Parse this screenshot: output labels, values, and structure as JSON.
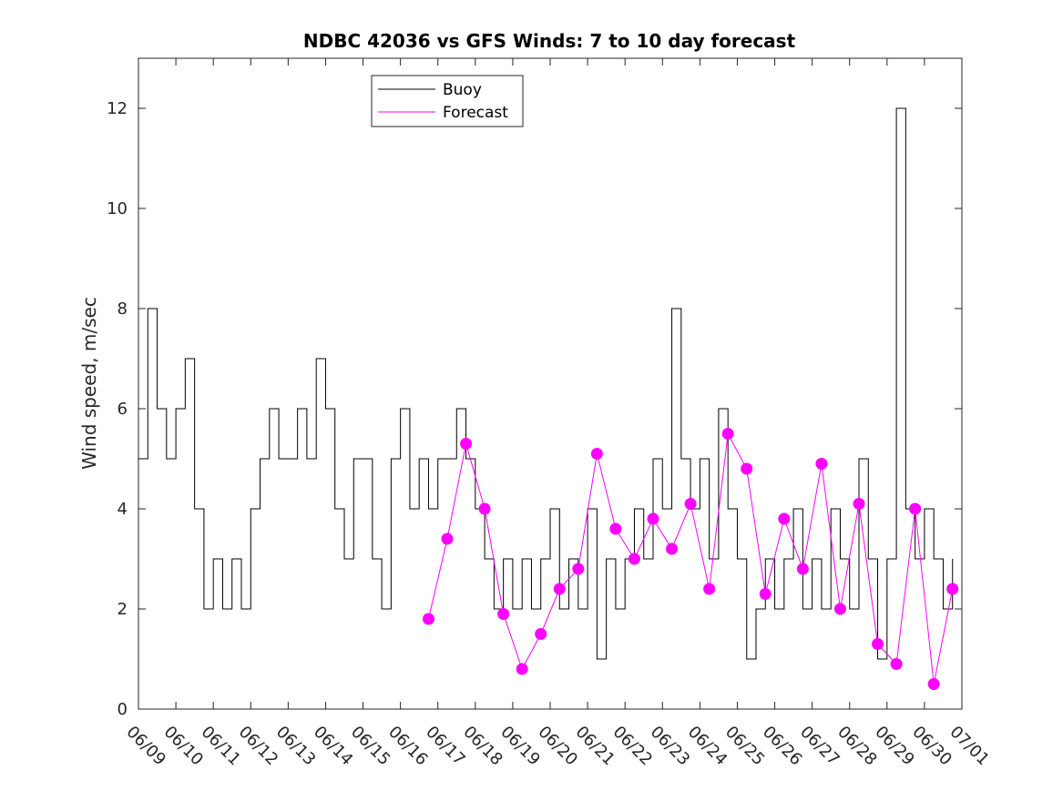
{
  "chart_data": {
    "type": "line",
    "title": "NDBC 42036 vs GFS Winds: 7 to 10 day forecast",
    "xlabel": "",
    "ylabel": "Wind speed, m/sec",
    "xlim": [
      "06/09",
      "07/01"
    ],
    "ylim": [
      0,
      13
    ],
    "x_tick_labels": [
      "06/09",
      "06/10",
      "06/11",
      "06/12",
      "06/13",
      "06/14",
      "06/15",
      "06/16",
      "06/17",
      "06/18",
      "06/19",
      "06/20",
      "06/21",
      "06/22",
      "06/23",
      "06/24",
      "06/25",
      "06/26",
      "06/27",
      "06/28",
      "06/29",
      "06/30",
      "07/01"
    ],
    "y_ticks": [
      0,
      2,
      4,
      6,
      8,
      10,
      12
    ],
    "grid": false,
    "legend": {
      "position": "top-left",
      "entries": [
        "Buoy",
        "Forecast"
      ]
    },
    "colors": {
      "buoy": "#000000",
      "forecast": "#ff00ff"
    },
    "series": [
      {
        "name": "Buoy",
        "x": [
          "06/09",
          "06/09 06Z",
          "06/09 12Z",
          "06/09 18Z",
          "06/10",
          "06/10 06Z",
          "06/10 12Z",
          "06/10 18Z",
          "06/11",
          "06/11 06Z",
          "06/11 12Z",
          "06/11 18Z",
          "06/12",
          "06/12 06Z",
          "06/12 12Z",
          "06/12 18Z",
          "06/13",
          "06/13 06Z",
          "06/13 12Z",
          "06/13 18Z",
          "06/14",
          "06/14 06Z",
          "06/14 12Z",
          "06/14 18Z",
          "06/15",
          "06/15 06Z",
          "06/15 12Z",
          "06/15 18Z",
          "06/16",
          "06/16 06Z",
          "06/16 12Z",
          "06/16 18Z",
          "06/17",
          "06/17 06Z",
          "06/17 12Z",
          "06/17 18Z",
          "06/18",
          "06/18 06Z",
          "06/18 12Z",
          "06/18 18Z",
          "06/19",
          "06/19 06Z",
          "06/19 12Z",
          "06/19 18Z",
          "06/20",
          "06/20 06Z",
          "06/20 12Z",
          "06/20 18Z",
          "06/21",
          "06/21 06Z",
          "06/21 12Z",
          "06/21 18Z",
          "06/22",
          "06/22 06Z",
          "06/22 12Z",
          "06/22 18Z",
          "06/23",
          "06/23 06Z",
          "06/23 12Z",
          "06/23 18Z",
          "06/24",
          "06/24 06Z",
          "06/24 12Z",
          "06/24 18Z",
          "06/25",
          "06/25 06Z",
          "06/25 12Z",
          "06/25 18Z",
          "06/26",
          "06/26 06Z",
          "06/26 12Z",
          "06/26 18Z",
          "06/27",
          "06/27 06Z",
          "06/27 12Z",
          "06/27 18Z",
          "06/28",
          "06/28 06Z",
          "06/28 12Z",
          "06/28 18Z",
          "06/29",
          "06/29 06Z",
          "06/29 12Z",
          "06/29 18Z",
          "06/30",
          "06/30 06Z",
          "06/30 12Z",
          "06/30 18Z"
        ],
        "values": [
          5,
          8,
          6,
          5,
          6,
          7,
          4,
          2,
          3,
          2,
          3,
          2,
          4,
          5,
          6,
          5,
          5,
          6,
          5,
          7,
          6,
          4,
          3,
          5,
          5,
          3,
          2,
          5,
          6,
          4,
          5,
          4,
          5,
          5,
          6,
          5,
          4,
          3,
          2,
          3,
          2,
          3,
          2,
          3,
          4,
          2,
          3,
          2,
          4,
          1,
          3,
          2,
          3,
          4,
          3,
          5,
          4,
          8,
          5,
          4,
          5,
          3,
          6,
          4,
          3,
          1,
          2,
          3,
          2,
          3,
          4,
          2,
          3,
          2,
          4,
          3,
          2,
          5,
          3,
          1,
          3,
          12,
          4,
          3,
          4,
          3,
          2,
          3
        ]
      },
      {
        "name": "Forecast",
        "x": [
          "06/16 18Z",
          "06/17 06Z",
          "06/17 18Z",
          "06/18 06Z",
          "06/18 18Z",
          "06/19 06Z",
          "06/19 18Z",
          "06/20 06Z",
          "06/20 18Z",
          "06/21 06Z",
          "06/21 18Z",
          "06/22 06Z",
          "06/22 18Z",
          "06/23 06Z",
          "06/23 18Z",
          "06/24 06Z",
          "06/24 18Z",
          "06/25 06Z",
          "06/25 18Z",
          "06/26 06Z",
          "06/26 18Z",
          "06/27 06Z",
          "06/27 18Z",
          "06/28 06Z",
          "06/28 18Z",
          "06/29 06Z",
          "06/29 18Z",
          "06/30 06Z",
          "06/30 18Z"
        ],
        "values": [
          1.8,
          3.4,
          5.3,
          4.0,
          1.9,
          0.8,
          1.5,
          2.4,
          2.8,
          5.1,
          3.6,
          3.0,
          3.8,
          3.2,
          4.1,
          2.4,
          5.5,
          4.8,
          2.3,
          3.8,
          2.8,
          4.9,
          2.0,
          4.1,
          1.3,
          0.9,
          4.0,
          0.5,
          2.4
        ]
      }
    ],
    "forecast_markers": {
      "x": [
        "06/16 18Z",
        "06/17 06Z",
        "06/17 18Z",
        "06/18 06Z",
        "06/18 18Z",
        "06/19 06Z",
        "06/19 18Z",
        "06/20 06Z",
        "06/20 18Z",
        "06/21 06Z",
        "06/21 18Z",
        "06/22 06Z",
        "06/22 18Z",
        "06/23 06Z",
        "06/23 18Z",
        "06/24 06Z",
        "06/24 18Z",
        "06/25 06Z",
        "06/25 18Z",
        "06/26 06Z",
        "06/26 18Z",
        "06/27 06Z",
        "06/27 18Z",
        "06/28 06Z",
        "06/28 18Z",
        "06/29 06Z",
        "06/29 18Z",
        "06/30 06Z",
        "06/30 18Z"
      ],
      "values": [
        1.8,
        3.4,
        5.3,
        4.0,
        1.9,
        0.8,
        1.5,
        2.4,
        2.8,
        5.1,
        3.6,
        3.0,
        3.8,
        3.2,
        4.1,
        2.4,
        5.5,
        4.8,
        2.3,
        3.8,
        2.8,
        4.9,
        2.0,
        4.1,
        1.3,
        0.9,
        4.0,
        0.5,
        2.4
      ]
    }
  }
}
